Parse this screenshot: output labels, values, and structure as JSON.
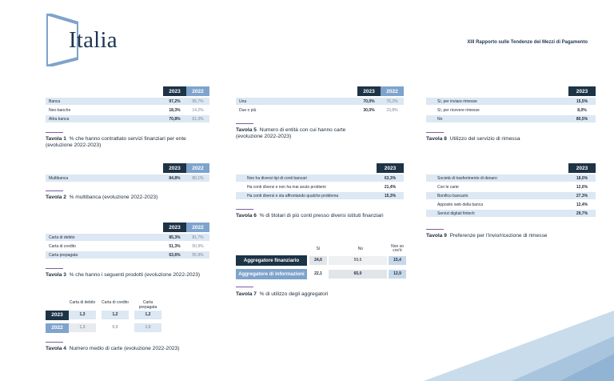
{
  "header": {
    "title": "Italia",
    "report": "XIII Rapporto sulle Tendenze dei Mezzi di Pagamento"
  },
  "colors": {
    "dark": "#1d3346",
    "light": "#7ea3cc",
    "band": "#dce8f3",
    "accent": "#7b5ea6"
  },
  "tav1": {
    "num": "Tavola 1",
    "caption": "% che hanno contrattato servizi finanziari per ente (evoluzione 2022-2023)",
    "headers": [
      "2023",
      "2022"
    ],
    "rows": [
      {
        "label": "Banca",
        "v1": "97,2%",
        "v2": "95,7%"
      },
      {
        "label": "Neo-banche",
        "v1": "18,3%",
        "v2": "14,2%"
      },
      {
        "label": "Altra banca",
        "v1": "70,8%",
        "v2": "61,3%"
      }
    ]
  },
  "tav2": {
    "num": "Tavola 2",
    "caption": "% multibanca (evoluzione 2022-2023)",
    "headers": [
      "2023",
      "2022"
    ],
    "rows": [
      {
        "label": "Multibanca",
        "v1": "84,8%",
        "v2": "80,1%"
      }
    ]
  },
  "tav3": {
    "num": "Tavola 3",
    "caption": "% che hanno i seguenti prodotti (evoluzione 2022-2023)",
    "headers": [
      "2023",
      "2022"
    ],
    "rows": [
      {
        "label": "Carta di debito",
        "v1": "85,3%",
        "v2": "81,7%"
      },
      {
        "label": "Carta di credito",
        "v1": "51,3%",
        "v2": "50,9%"
      },
      {
        "label": "Carta prepagata",
        "v1": "63,6%",
        "v2": "55,9%"
      }
    ]
  },
  "tav4": {
    "num": "Tavola 4",
    "caption": "Numero medio di carte (evoluzione 2022-2023)",
    "cols": [
      "Carta di debito",
      "Carta di credito",
      "Carta prepagata"
    ],
    "rows": [
      {
        "year": "2023",
        "values": [
          "1,3",
          "1,2",
          "1,2"
        ]
      },
      {
        "year": "2022",
        "values": [
          "1,3",
          "0,9",
          "1,0"
        ]
      }
    ]
  },
  "tav5": {
    "num": "Tavola 5",
    "caption": "Numero di entità con cui hanno carte (evoluzione 2022-2023)",
    "headers": [
      "2023",
      "2022"
    ],
    "rows": [
      {
        "label": "Una",
        "v1": "70,0%",
        "v2": "76,2%"
      },
      {
        "label": "Due o più",
        "v1": "30,0%",
        "v2": "23,8%"
      }
    ]
  },
  "tav6": {
    "num": "Tavola 6",
    "caption": "% di titolari di più conti presso diversi istituti finanziari",
    "headers": [
      "2023"
    ],
    "rows": [
      {
        "label": "Non ha diversi tipi di conti bancari",
        "v1": "63,3%"
      },
      {
        "label": "Ha conti diversi e non ha mai avuto problemi",
        "v1": "21,4%"
      },
      {
        "label": "Ha conti diversi e sta affrontando qualche problema",
        "v1": "15,3%"
      }
    ]
  },
  "tav7": {
    "num": "Tavola 7",
    "caption": "% di utilizzo degli aggregatori",
    "cols": [
      "Sì",
      "No",
      "Non so cos'è"
    ],
    "rows": [
      {
        "label": "Aggregatore finanziario",
        "values": [
          "24,6",
          "59,6",
          "15,4"
        ]
      },
      {
        "label": "Aggregatore di informazioni",
        "values": [
          "22,1",
          "65,0",
          "12,9"
        ]
      }
    ]
  },
  "tav8": {
    "num": "Tavola 8",
    "caption": "Utilizzo del servizio di rimessa",
    "headers": [
      "2023"
    ],
    "rows": [
      {
        "label": "Sì, per inviare rimesse",
        "v1": "15,5%"
      },
      {
        "label": "Sì, per ricevere rimesse",
        "v1": "8,0%"
      },
      {
        "label": "No",
        "v1": "80,5%"
      }
    ]
  },
  "tav9": {
    "num": "Tavola 9",
    "caption": "Preferenze per l'invio/ricezione di rimesse",
    "headers": [
      "2023"
    ],
    "rows": [
      {
        "label": "Società di trasferimento di denaro",
        "v1": "18,0%"
      },
      {
        "label": "Con le carte",
        "v1": "12,6%"
      },
      {
        "label": "Bonifico bancario",
        "v1": "27,3%"
      },
      {
        "label": "Apposito web della banca",
        "v1": "12,4%"
      },
      {
        "label": "Servizi digitali fintech",
        "v1": "29,7%"
      }
    ]
  }
}
